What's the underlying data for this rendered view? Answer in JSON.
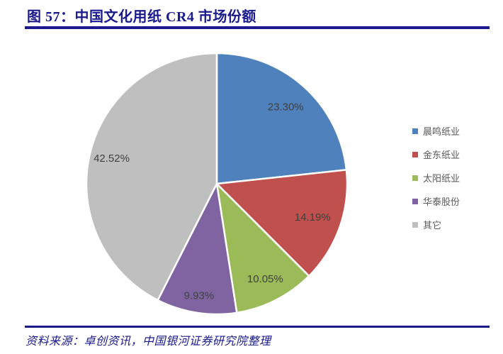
{
  "figure": {
    "title": "图 57：中国文化用纸 CR4 市场份额",
    "source": "资料来源：卓创资讯，中国银河证券研究院整理"
  },
  "colors": {
    "accent_navy": "#1A1A8C",
    "slice_label_text": "#404040",
    "legend_text": "#595959",
    "slice_border": "#FFFFFF"
  },
  "chart_data": {
    "type": "pie",
    "title": "中国文化用纸 CR4 市场份额",
    "labels": [
      "晨鸣纸业",
      "金东纸业",
      "太阳纸业",
      "华泰股份",
      "其它"
    ],
    "values": [
      23.3,
      14.19,
      10.05,
      9.93,
      42.52
    ],
    "value_labels": [
      "23.30%",
      "14.19%",
      "10.05%",
      "9.93%",
      "42.52%"
    ],
    "slice_colors": [
      "#4F81BD",
      "#C0504D",
      "#9BBB59",
      "#8064A2",
      "#BFBFBF"
    ],
    "start_angle_deg": 0,
    "direction": "clockwise",
    "legend_position": "right",
    "labels_inside": true,
    "label_radius_frac": [
      0.79,
      0.78,
      0.82,
      0.87,
      0.83
    ]
  }
}
